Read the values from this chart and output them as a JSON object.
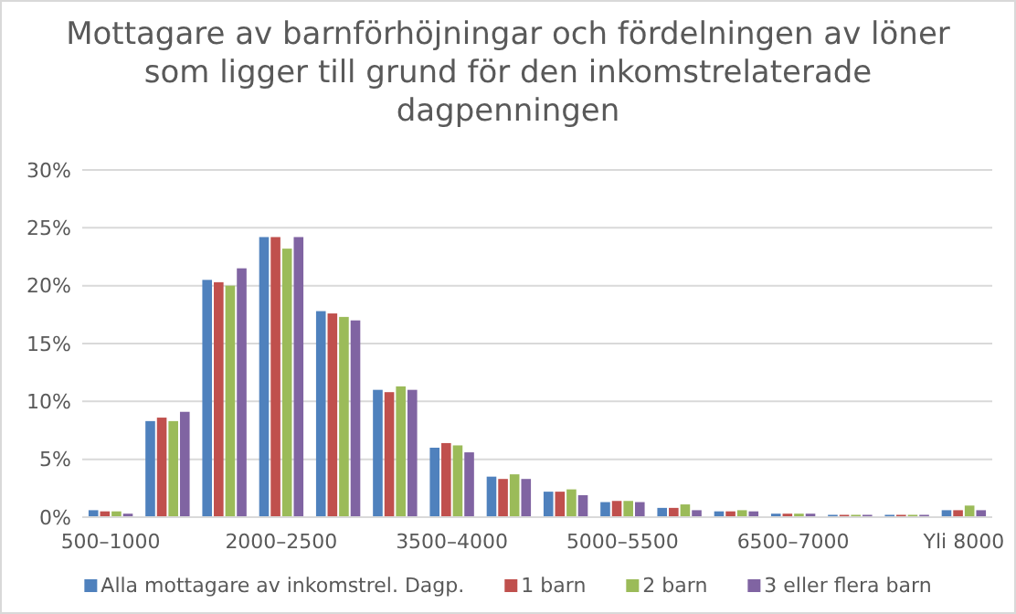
{
  "chart_data": {
    "type": "bar",
    "title": "Mottagare av barnförhöjningar och fördelningen av löner som ligger till grund för den inkomstrelaterade dagpenningen",
    "categories": [
      "500–1000",
      null,
      null,
      "2000–2500",
      null,
      null,
      "3500–4000",
      null,
      null,
      "5000–5500",
      null,
      null,
      "6500–7000",
      null,
      null,
      "Yli 8000"
    ],
    "series": [
      {
        "name": "Alla mottagare av inkomstrel. Dagp.",
        "color": "#4f81bd",
        "values": [
          0.6,
          8.3,
          20.5,
          24.2,
          17.8,
          11.0,
          6.0,
          3.5,
          2.2,
          1.3,
          0.8,
          0.5,
          0.3,
          0.2,
          0.2,
          0.6
        ]
      },
      {
        "name": "1 barn",
        "color": "#c0504d",
        "values": [
          0.5,
          8.6,
          20.3,
          24.2,
          17.6,
          10.8,
          6.4,
          3.3,
          2.2,
          1.4,
          0.8,
          0.5,
          0.3,
          0.2,
          0.2,
          0.6
        ]
      },
      {
        "name": "2 barn",
        "color": "#9bbb59",
        "values": [
          0.5,
          8.3,
          20.0,
          23.2,
          17.3,
          11.3,
          6.2,
          3.7,
          2.4,
          1.4,
          1.1,
          0.6,
          0.3,
          0.2,
          0.2,
          1.0
        ]
      },
      {
        "name": "3 eller flera barn",
        "color": "#8064a2",
        "values": [
          0.3,
          9.1,
          21.5,
          24.2,
          17.0,
          11.0,
          5.6,
          3.3,
          1.9,
          1.3,
          0.6,
          0.5,
          0.3,
          0.2,
          0.2,
          0.6
        ]
      }
    ],
    "ylim": [
      0,
      30
    ],
    "yticks": [
      {
        "value": 0,
        "label": "0%"
      },
      {
        "value": 5,
        "label": "5%"
      },
      {
        "value": 10,
        "label": "10%"
      },
      {
        "value": 15,
        "label": "15%"
      },
      {
        "value": 20,
        "label": "20%"
      },
      {
        "value": 25,
        "label": "25%"
      },
      {
        "value": 30,
        "label": "30%"
      }
    ],
    "grid": "y",
    "legend": "bottom"
  }
}
